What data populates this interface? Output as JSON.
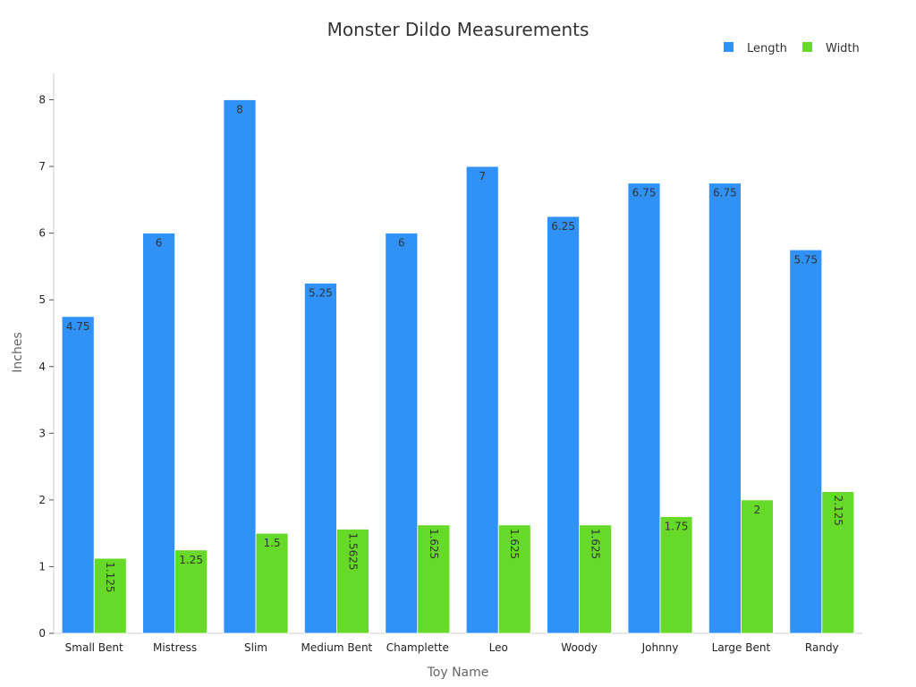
{
  "chart_data": {
    "type": "bar",
    "title": "Monster Dildo Measurements",
    "xlabel": "Toy Name",
    "ylabel": "Inches",
    "ylim": [
      0,
      8.4
    ],
    "yticks": [
      0,
      1,
      2,
      3,
      4,
      5,
      6,
      7,
      8
    ],
    "grid": false,
    "legend_position": "top-right",
    "categories": [
      "Small Bent",
      "Mistress",
      "Slim",
      "Medium Bent",
      "Champlette",
      "Leo",
      "Woody",
      "Johnny",
      "Large Bent",
      "Randy"
    ],
    "series": [
      {
        "name": "Length",
        "color": "#3091f7",
        "values": [
          4.75,
          6,
          8,
          5.25,
          6,
          7,
          6.25,
          6.75,
          6.75,
          5.75
        ],
        "value_labels": [
          "4.75",
          "6",
          "8",
          "5.25",
          "6",
          "7",
          "6.25",
          "6.75",
          "6.75",
          "5.75"
        ],
        "label_rotated": [
          false,
          false,
          false,
          false,
          false,
          false,
          false,
          false,
          false,
          false
        ]
      },
      {
        "name": "Width",
        "color": "#66d929",
        "values": [
          1.125,
          1.25,
          1.5,
          1.5625,
          1.625,
          1.625,
          1.625,
          1.75,
          2,
          2.125
        ],
        "value_labels": [
          "1.125",
          "1.25",
          "1.5",
          "1.5625",
          "1.625",
          "1.625",
          "1.625",
          "1.75",
          "2",
          "2.125"
        ],
        "label_rotated": [
          true,
          false,
          false,
          true,
          true,
          true,
          true,
          false,
          false,
          true
        ]
      }
    ]
  }
}
